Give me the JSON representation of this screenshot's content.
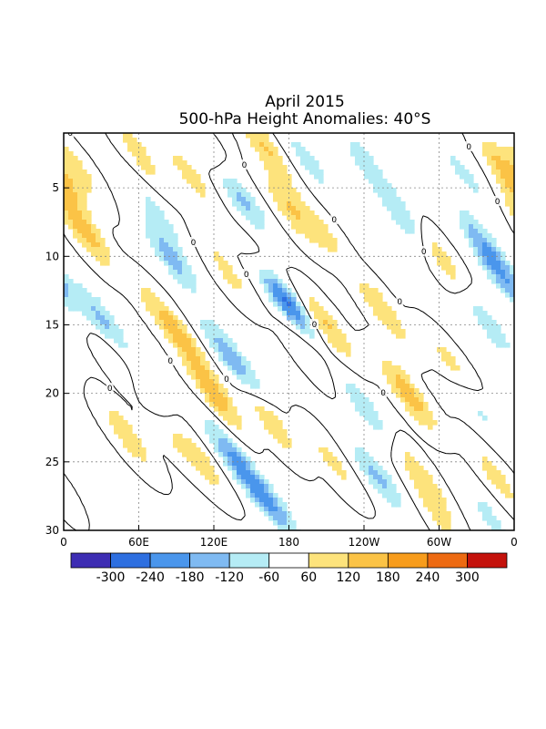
{
  "chart_data": {
    "type": "heatmap",
    "title": "April 2015",
    "subtitle": "500-hPa Height Anomalies: 40°S",
    "xlabel": "",
    "ylabel": "",
    "x_ticks": [
      "0",
      "60E",
      "120E",
      "180",
      "120W",
      "60W",
      "0"
    ],
    "y_ticks": [
      "5",
      "10",
      "15",
      "20",
      "25",
      "30"
    ],
    "y_tick_values": [
      5,
      10,
      15,
      20,
      25,
      30
    ],
    "xlim": [
      0,
      360
    ],
    "ylim": [
      1,
      30
    ],
    "y_axis_inverted": true,
    "grid": true,
    "contour_level_label": "0",
    "colorbar": {
      "levels": [
        -300,
        -240,
        -180,
        -120,
        -60,
        60,
        120,
        180,
        240,
        300
      ],
      "labels": [
        "-300",
        "-240",
        "-180",
        "-120",
        "-60",
        "60",
        "120",
        "180",
        "240",
        "300"
      ],
      "colors": [
        "#3d2db3",
        "#2e6fe0",
        "#4a96ec",
        "#7fbaf2",
        "#b5ecf5",
        "#ffffff",
        "#fde37c",
        "#fbc346",
        "#f79c1c",
        "#ed6a12",
        "#c4120c"
      ]
    },
    "anomaly_features": [
      {
        "lon": 10,
        "day": 3.5,
        "value": 90
      },
      {
        "lon": 15,
        "day": 8,
        "value": 170
      },
      {
        "lon": 30,
        "day": 14.5,
        "value": -140
      },
      {
        "lon": 45,
        "day": 18,
        "value": 80
      },
      {
        "lon": 50,
        "day": 23,
        "value": 110
      },
      {
        "lon": 60,
        "day": 2.5,
        "value": 90
      },
      {
        "lon": 75,
        "day": 7,
        "value": -80
      },
      {
        "lon": 85,
        "day": 10,
        "value": -150
      },
      {
        "lon": 75,
        "day": 14,
        "value": 80
      },
      {
        "lon": 65,
        "day": 20,
        "value": -80
      },
      {
        "lon": 100,
        "day": 4,
        "value": 90
      },
      {
        "lon": 95,
        "day": 16,
        "value": 120
      },
      {
        "lon": 85,
        "day": 23,
        "value": 60
      },
      {
        "lon": 120,
        "day": 3,
        "value": 90
      },
      {
        "lon": 140,
        "day": 5.5,
        "value": -170
      },
      {
        "lon": 130,
        "day": 11,
        "value": 80
      },
      {
        "lon": 125,
        "day": 16.5,
        "value": -80
      },
      {
        "lon": 140,
        "day": 18,
        "value": -120
      },
      {
        "lon": 120,
        "day": 20,
        "value": 170
      },
      {
        "lon": 130,
        "day": 24,
        "value": -120
      },
      {
        "lon": 150,
        "day": 26.5,
        "value": -150
      },
      {
        "lon": 170,
        "day": 28.5,
        "value": -120
      },
      {
        "lon": 110,
        "day": 25,
        "value": 90
      },
      {
        "lon": 160,
        "day": 2,
        "value": 130
      },
      {
        "lon": 180,
        "day": 6.5,
        "value": 120
      },
      {
        "lon": 175,
        "day": 13,
        "value": -300
      },
      {
        "lon": 160,
        "day": 11,
        "value": 80
      },
      {
        "lon": 165,
        "day": 22,
        "value": 110
      },
      {
        "lon": 195,
        "day": 17,
        "value": 60
      },
      {
        "lon": 195,
        "day": 3,
        "value": -90
      },
      {
        "lon": 205,
        "day": 8,
        "value": 90
      },
      {
        "lon": 210,
        "day": 15,
        "value": 130
      },
      {
        "lon": 240,
        "day": 21,
        "value": -110
      },
      {
        "lon": 250,
        "day": 26,
        "value": -140
      },
      {
        "lon": 215,
        "day": 25,
        "value": 80
      },
      {
        "lon": 240,
        "day": 3,
        "value": -90
      },
      {
        "lon": 270,
        "day": 7,
        "value": -120
      },
      {
        "lon": 255,
        "day": 14,
        "value": 120
      },
      {
        "lon": 275,
        "day": 20,
        "value": 170
      },
      {
        "lon": 285,
        "day": 26,
        "value": 110
      },
      {
        "lon": 300,
        "day": 10,
        "value": 110
      },
      {
        "lon": 310,
        "day": 18,
        "value": 90
      },
      {
        "lon": 300,
        "day": 29,
        "value": 70
      },
      {
        "lon": 320,
        "day": 4,
        "value": -80
      },
      {
        "lon": 335,
        "day": 9,
        "value": -140
      },
      {
        "lon": 350,
        "day": 11.5,
        "value": -150
      },
      {
        "lon": 340,
        "day": 15,
        "value": -100
      },
      {
        "lon": 355,
        "day": 4,
        "value": 170
      },
      {
        "lon": 330,
        "day": 21,
        "value": -80
      },
      {
        "lon": 345,
        "day": 26,
        "value": 90
      },
      {
        "lon": 340,
        "day": 29,
        "value": -80
      }
    ]
  }
}
